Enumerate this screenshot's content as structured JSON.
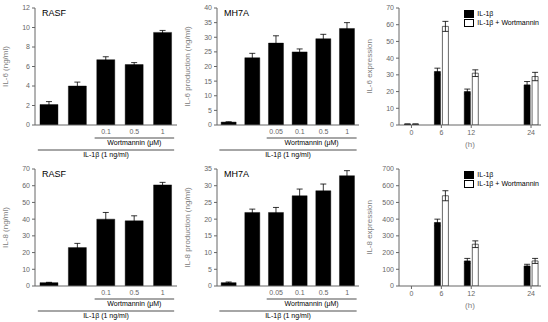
{
  "chart_data": [
    {
      "type": "bar",
      "title": "RASF",
      "y_label": "IL-6 (ng/ml)",
      "categories": [
        null,
        null,
        "0.1",
        "0.5",
        "1"
      ],
      "values": [
        2.1,
        4.0,
        6.7,
        6.2,
        9.5
      ],
      "errors": [
        0.3,
        0.4,
        0.3,
        0.2,
        0.2
      ],
      "color": "#000000",
      "ylim": [
        0,
        12
      ],
      "yticks": [
        0,
        2,
        4,
        6,
        8,
        10,
        12
      ],
      "annotations": [
        {
          "text": "Wortmannin (μM)",
          "start": 2,
          "end": 4
        },
        {
          "text": "IL-1β (1 ng/ml)",
          "start": 0,
          "end": 4
        }
      ],
      "grid": false
    },
    {
      "type": "bar",
      "title": "MH7A",
      "y_label": "IL-6 production (ng/ml)",
      "categories": [
        null,
        null,
        "0.05",
        "0.1",
        "0.5",
        "1"
      ],
      "values": [
        1.0,
        23.0,
        28.0,
        25.0,
        29.5,
        33.0
      ],
      "errors": [
        0.1,
        1.5,
        2.5,
        1.0,
        1.5,
        2.0
      ],
      "color": "#000000",
      "ylim": [
        0,
        40
      ],
      "yticks": [
        0,
        5,
        10,
        15,
        20,
        25,
        30,
        35,
        40
      ],
      "annotations": [
        {
          "text": "Wortmannin (μM)",
          "start": 2,
          "end": 5
        },
        {
          "text": "IL-1β (1 ng/ml)",
          "start": 0,
          "end": 5
        }
      ],
      "grid": false
    },
    {
      "type": "bar",
      "y_label": "IL-6 expression",
      "x_label": "(h)",
      "x": [
        0,
        6,
        12,
        24
      ],
      "xlim": [
        -2.5,
        26
      ],
      "xticks": [
        0,
        6,
        12,
        24
      ],
      "series": [
        {
          "name": "IL-1β",
          "color": "#000000",
          "values": [
            0.5,
            32,
            20,
            24
          ],
          "errors": [
            0.1,
            2.0,
            1.5,
            2.0
          ]
        },
        {
          "name": "IL-1β + Wortmannin",
          "color": "#ffffff",
          "values": [
            0.5,
            59,
            31,
            29
          ],
          "errors": [
            0.1,
            3.0,
            2.0,
            2.5
          ]
        }
      ],
      "ylim": [
        0,
        70
      ],
      "yticks": [
        0,
        10,
        20,
        30,
        40,
        50,
        60,
        70
      ],
      "legend": "upper right",
      "grid": false
    },
    {
      "type": "bar",
      "title": "RASF",
      "y_label": "IL-8 (ng/ml)",
      "categories": [
        null,
        null,
        "0.1",
        "0.5",
        "1"
      ],
      "values": [
        2.0,
        23.0,
        40.0,
        39.0,
        60.5
      ],
      "errors": [
        0.2,
        2.5,
        4.0,
        3.0,
        1.5
      ],
      "color": "#000000",
      "ylim": [
        0,
        70
      ],
      "yticks": [
        0,
        10,
        20,
        30,
        40,
        50,
        60,
        70
      ],
      "annotations": [
        {
          "text": "Wortmannin (μM)",
          "start": 2,
          "end": 4
        },
        {
          "text": "IL-1β (1 ng/ml)",
          "start": 0,
          "end": 4
        }
      ],
      "grid": false
    },
    {
      "type": "bar",
      "title": "MH7A",
      "y_label": "IL-8 production (ng/ml)",
      "categories": [
        null,
        null,
        "0.05",
        "0.1",
        "0.5",
        "1"
      ],
      "values": [
        1.0,
        22.0,
        22.0,
        27.0,
        28.5,
        33.0
      ],
      "errors": [
        0.2,
        1.0,
        1.5,
        2.0,
        2.0,
        1.5
      ],
      "color": "#000000",
      "ylim": [
        0,
        35
      ],
      "yticks": [
        0,
        5,
        10,
        15,
        20,
        25,
        30,
        35
      ],
      "annotations": [
        {
          "text": "Wortmannin (μM)",
          "start": 2,
          "end": 5
        },
        {
          "text": "IL-1β (1 ng/ml)",
          "start": 0,
          "end": 5
        }
      ],
      "grid": false
    },
    {
      "type": "bar",
      "y_label": "IL-8 expression",
      "x_label": "(h)",
      "x": [
        0,
        6,
        12,
        24
      ],
      "xlim": [
        -2.5,
        26
      ],
      "xticks": [
        0,
        6,
        12,
        24
      ],
      "series": [
        {
          "name": "IL-1β",
          "color": "#000000",
          "values": [
            0,
            380,
            150,
            120
          ],
          "errors": [
            0,
            20,
            15,
            10
          ]
        },
        {
          "name": "IL-1β + Wortmannin",
          "color": "#ffffff",
          "values": [
            0,
            540,
            250,
            150
          ],
          "errors": [
            0,
            30,
            20,
            15
          ]
        }
      ],
      "ylim": [
        0,
        700
      ],
      "yticks": [
        0,
        100,
        200,
        300,
        400,
        500,
        600,
        700
      ],
      "legend": "upper right",
      "grid": false
    }
  ]
}
